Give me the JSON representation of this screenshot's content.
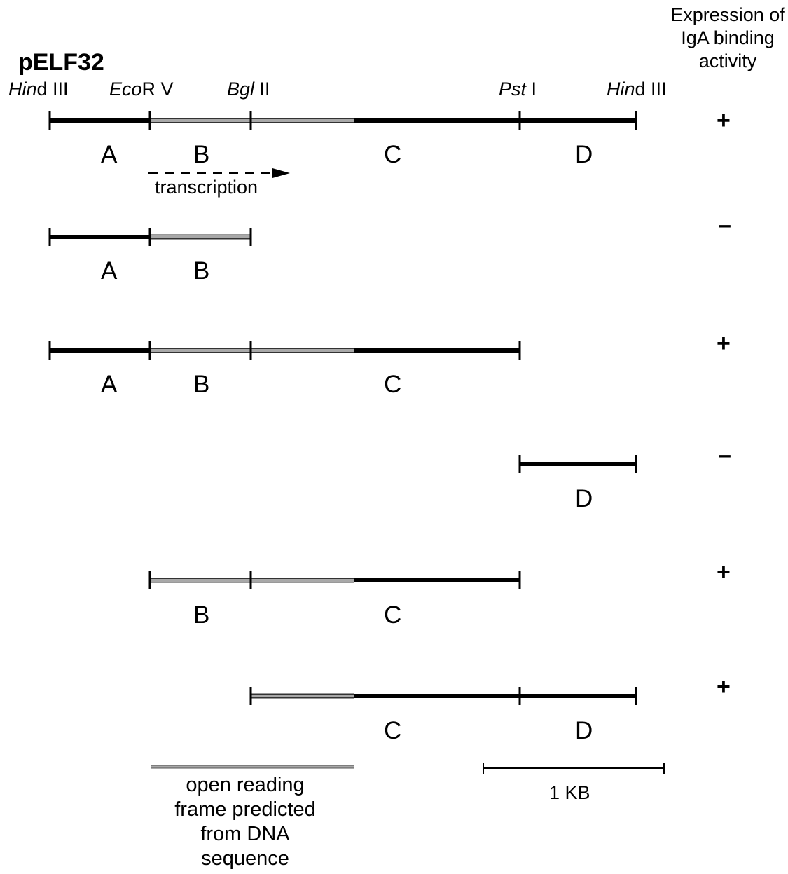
{
  "title": "pELF32",
  "header": {
    "expression_label": "Expression of IgA binding activity"
  },
  "sites": {
    "hind3_left": {
      "name_italic": "Hin",
      "name_rest": "d III"
    },
    "ecorv": {
      "name_italic": "Eco",
      "name_rest": "R V"
    },
    "bgl2": {
      "name_italic": "Bgl",
      "name_rest": " II"
    },
    "pst1": {
      "name_italic": "Pst",
      "name_rest": " I"
    },
    "hind3_right": {
      "name_italic": "Hin",
      "name_rest": "d III"
    }
  },
  "transcription_label": "transcription",
  "constructs": [
    {
      "fragments": [
        "A",
        "B",
        "C",
        "D"
      ],
      "expression": "+"
    },
    {
      "fragments": [
        "A",
        "B"
      ],
      "expression": "–"
    },
    {
      "fragments": [
        "A",
        "B",
        "C"
      ],
      "expression": "+"
    },
    {
      "fragments": [
        "D"
      ],
      "expression": "–"
    },
    {
      "fragments": [
        "B",
        "C"
      ],
      "expression": "+"
    },
    {
      "fragments": [
        "C",
        "D"
      ],
      "expression": "+"
    }
  ],
  "legend": {
    "orf_label": "open reading frame predicted from DNA sequence",
    "scale_label": "1 KB"
  },
  "colors": {
    "dna": "#000000",
    "orf": "#a8a8a8"
  }
}
